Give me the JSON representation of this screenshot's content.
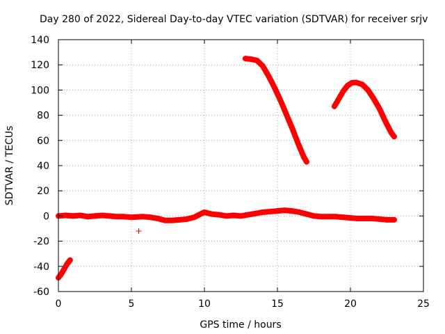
{
  "chart_data": {
    "type": "scatter",
    "title": "Day 280 of 2022, Sidereal Day-to-day VTEC variation (SDTVAR) for receiver srjv",
    "xlabel": "GPS time / hours",
    "ylabel": "SDTVAR / TECUs",
    "xlim": [
      0,
      25
    ],
    "ylim": [
      -60,
      140
    ],
    "xticks": [
      0,
      5,
      10,
      15,
      20,
      25
    ],
    "yticks": [
      -60,
      -40,
      -20,
      0,
      20,
      40,
      60,
      80,
      100,
      120,
      140
    ],
    "grid": true,
    "marker": "+",
    "color": "#ff0000",
    "series": [
      {
        "name": "arc-early-rising",
        "points": [
          [
            0.0,
            -49
          ],
          [
            0.2,
            -46
          ],
          [
            0.4,
            -42
          ],
          [
            0.6,
            -38
          ],
          [
            0.8,
            -35
          ]
        ]
      },
      {
        "name": "near-zero-baseline",
        "points": [
          [
            0.0,
            0
          ],
          [
            0.5,
            0.5
          ],
          [
            1.0,
            0
          ],
          [
            1.5,
            0.5
          ],
          [
            2.0,
            -0.5
          ],
          [
            2.5,
            0
          ],
          [
            3.0,
            0.5
          ],
          [
            3.5,
            0
          ],
          [
            4.0,
            -0.5
          ],
          [
            4.5,
            -0.5
          ],
          [
            5.0,
            -1
          ],
          [
            5.8,
            -0.5
          ],
          [
            6.3,
            -1
          ],
          [
            6.8,
            -2
          ],
          [
            7.3,
            -3.5
          ],
          [
            7.8,
            -3.5
          ],
          [
            8.3,
            -3
          ],
          [
            8.8,
            -2.5
          ],
          [
            9.3,
            -1
          ],
          [
            9.8,
            2
          ],
          [
            10.0,
            3
          ],
          [
            10.5,
            1.5
          ],
          [
            11.0,
            1
          ],
          [
            11.5,
            0
          ],
          [
            12.0,
            0.5
          ],
          [
            12.5,
            0
          ],
          [
            13.0,
            1
          ],
          [
            13.5,
            2
          ],
          [
            14.0,
            3
          ],
          [
            14.5,
            3.5
          ],
          [
            15.0,
            4
          ],
          [
            15.5,
            4.5
          ],
          [
            16.0,
            4
          ],
          [
            16.5,
            3
          ],
          [
            17.0,
            1.5
          ],
          [
            17.5,
            0
          ],
          [
            18.0,
            -0.5
          ],
          [
            18.5,
            -0.5
          ],
          [
            19.0,
            -0.5
          ],
          [
            19.5,
            -1
          ],
          [
            20.0,
            -1.5
          ],
          [
            20.5,
            -2
          ],
          [
            21.0,
            -2
          ],
          [
            21.5,
            -2
          ],
          [
            22.0,
            -2.5
          ],
          [
            22.5,
            -3
          ],
          [
            23.0,
            -3
          ]
        ]
      },
      {
        "name": "outlier",
        "points": [
          [
            5.5,
            -12
          ]
        ]
      },
      {
        "name": "arc-descending",
        "points": [
          [
            12.8,
            125
          ],
          [
            13.2,
            124.5
          ],
          [
            13.6,
            123.5
          ],
          [
            14.0,
            119
          ],
          [
            14.4,
            111
          ],
          [
            14.8,
            102
          ],
          [
            15.2,
            92
          ],
          [
            15.6,
            81
          ],
          [
            16.0,
            70
          ],
          [
            16.4,
            58
          ],
          [
            16.8,
            47
          ],
          [
            17.0,
            43
          ]
        ]
      },
      {
        "name": "arc-peak",
        "points": [
          [
            18.9,
            87
          ],
          [
            19.2,
            93
          ],
          [
            19.5,
            99
          ],
          [
            19.8,
            103.5
          ],
          [
            20.1,
            105.8
          ],
          [
            20.4,
            106
          ],
          [
            20.8,
            104.5
          ],
          [
            21.2,
            100
          ],
          [
            21.6,
            93
          ],
          [
            22.0,
            85
          ],
          [
            22.4,
            75
          ],
          [
            22.8,
            66
          ],
          [
            23.0,
            63
          ]
        ]
      }
    ]
  }
}
